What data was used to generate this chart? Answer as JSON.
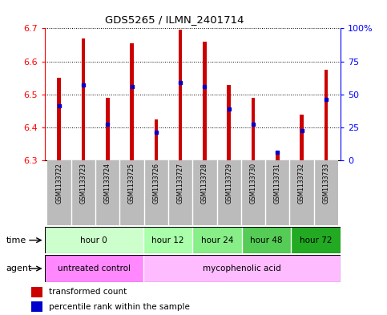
{
  "title": "GDS5265 / ILMN_2401714",
  "samples": [
    "GSM1133722",
    "GSM1133723",
    "GSM1133724",
    "GSM1133725",
    "GSM1133726",
    "GSM1133727",
    "GSM1133728",
    "GSM1133729",
    "GSM1133730",
    "GSM1133731",
    "GSM1133732",
    "GSM1133733"
  ],
  "bar_bottoms": [
    6.3,
    6.3,
    6.3,
    6.3,
    6.3,
    6.3,
    6.3,
    6.3,
    6.3,
    6.3,
    6.3,
    6.3
  ],
  "bar_tops": [
    6.55,
    6.67,
    6.49,
    6.655,
    6.425,
    6.695,
    6.66,
    6.53,
    6.49,
    6.32,
    6.44,
    6.575
  ],
  "percentile_values": [
    6.465,
    6.53,
    6.41,
    6.525,
    6.385,
    6.535,
    6.525,
    6.455,
    6.41,
    6.325,
    6.39,
    6.485
  ],
  "ylim_left": [
    6.3,
    6.7
  ],
  "ylim_right": [
    0,
    100
  ],
  "yticks_left": [
    6.3,
    6.4,
    6.5,
    6.6,
    6.7
  ],
  "yticks_right": [
    0,
    25,
    50,
    75,
    100
  ],
  "ytick_right_labels": [
    "0",
    "25",
    "50",
    "75",
    "100%"
  ],
  "bar_color": "#cc0000",
  "percentile_color": "#0000cc",
  "background_color": "#ffffff",
  "grid_color": "#000000",
  "time_groups": [
    {
      "label": "hour 0",
      "start": 0,
      "end": 4,
      "color": "#ccffcc"
    },
    {
      "label": "hour 12",
      "start": 4,
      "end": 6,
      "color": "#aaffaa"
    },
    {
      "label": "hour 24",
      "start": 6,
      "end": 8,
      "color": "#88ee88"
    },
    {
      "label": "hour 48",
      "start": 8,
      "end": 10,
      "color": "#55cc55"
    },
    {
      "label": "hour 72",
      "start": 10,
      "end": 12,
      "color": "#22aa22"
    }
  ],
  "agent_groups": [
    {
      "label": "untreated control",
      "start": 0,
      "end": 4,
      "color": "#ff88ff"
    },
    {
      "label": "mycophenolic acid",
      "start": 4,
      "end": 12,
      "color": "#ffbbff"
    }
  ],
  "sample_bg_color": "#bbbbbb",
  "legend_red_label": "transformed count",
  "legend_blue_label": "percentile rank within the sample",
  "time_label": "time",
  "agent_label": "agent",
  "bar_width": 0.15
}
